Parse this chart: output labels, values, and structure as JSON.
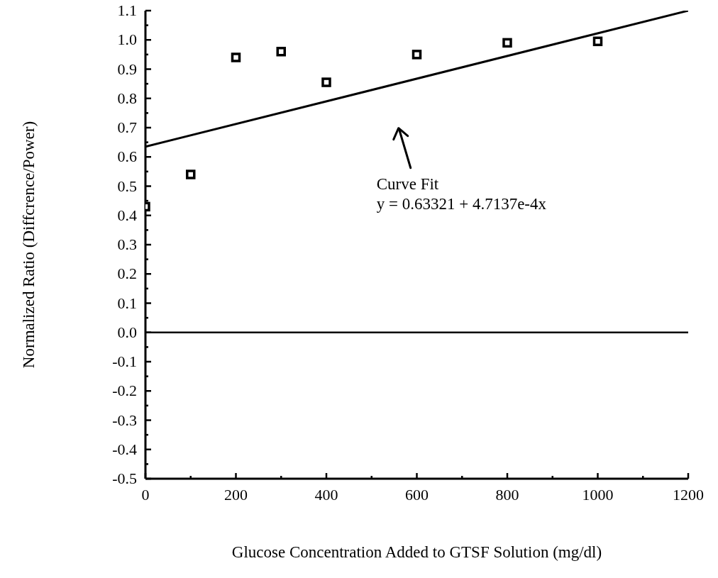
{
  "chart_data": {
    "type": "scatter",
    "xlabel": "Glucose Concentration Added to GTSF Solution (mg/dl)",
    "ylabel": "Normalized Ratio (Diffcrence/Power)",
    "xlim": [
      0,
      1200
    ],
    "xticks": [
      0,
      {
        "value": 100,
        "label": null
      },
      200,
      {
        "value": 300,
        "label": null
      },
      400,
      {
        "value": 500,
        "label": null
      },
      600,
      {
        "value": 700,
        "label": null
      },
      800,
      {
        "value": 900,
        "label": null
      },
      1000,
      {
        "value": 1100,
        "label": null
      },
      1200
    ],
    "ylim": [
      -0.5,
      1.1
    ],
    "yticks": [
      -0.5,
      {
        "value": -0.45,
        "label": null
      },
      -0.4,
      {
        "value": -0.35,
        "label": null
      },
      -0.3,
      {
        "value": -0.25,
        "label": null
      },
      -0.2,
      {
        "value": -0.15,
        "label": null
      },
      -0.1,
      {
        "value": -0.05,
        "label": null
      },
      {
        "value": 0,
        "label": "0.0"
      },
      {
        "value": 0.05,
        "label": null
      },
      0.1,
      {
        "value": 0.15,
        "label": null
      },
      0.2,
      {
        "value": 0.25,
        "label": null
      },
      0.3,
      {
        "value": 0.35,
        "label": null
      },
      0.4,
      {
        "value": 0.45,
        "label": null
      },
      0.5,
      {
        "value": 0.55,
        "label": null
      },
      0.6,
      {
        "value": 0.65,
        "label": null
      },
      0.7,
      {
        "value": 0.75,
        "label": null
      },
      0.8,
      {
        "value": 0.85,
        "label": null
      },
      0.9,
      {
        "value": 0.95,
        "label": null
      },
      {
        "value": 1,
        "label": "1.0"
      },
      {
        "value": 1.05,
        "label": null
      },
      1.1
    ],
    "marker": "square",
    "grid": false,
    "series": [
      {
        "color": "#000000",
        "x": [
          0,
          100,
          200,
          300,
          400,
          600,
          800,
          1000
        ],
        "values": [
          0.43,
          0.54,
          0.94,
          0.96,
          0.855,
          0.95,
          0.99,
          0.995
        ]
      },
      {
        "type": "line",
        "color": "#000000",
        "marker": "none",
        "x": [
          0,
          1200
        ],
        "values": [
          0.635,
          1.1
        ]
      }
    ],
    "ref_lines": [
      {
        "axis": "y",
        "value": 0,
        "color": "#000000"
      }
    ],
    "annotations": [
      "Curve Fit",
      "y = 0.63321 + 4.7137e-4x"
    ]
  }
}
